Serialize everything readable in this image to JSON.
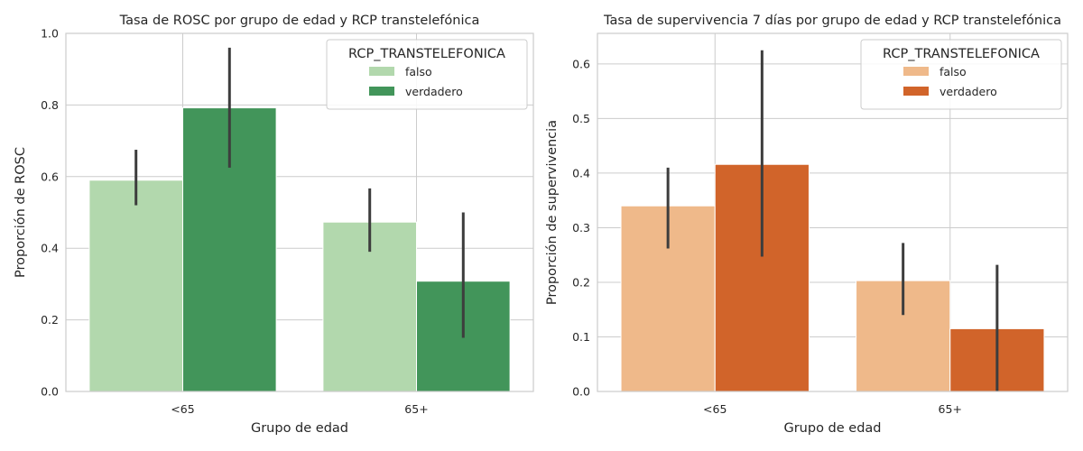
{
  "chart_data": [
    {
      "type": "bar",
      "title": "Tasa de ROSC por grupo de edad y RCP transtelefónica",
      "xlabel": "Grupo de edad",
      "ylabel": "Proporción de ROSC",
      "categories": [
        "<65",
        "65+"
      ],
      "ylim": [
        0,
        1.0
      ],
      "yticks": [
        0.0,
        0.2,
        0.4,
        0.6,
        0.8,
        1.0
      ],
      "ytick_labels": [
        "0.0",
        "0.2",
        "0.4",
        "0.6",
        "0.8",
        "1.0"
      ],
      "grid": true,
      "legend": {
        "title": "RCP_TRANSTELEFONICA",
        "placement": "top-right"
      },
      "series": [
        {
          "name": "falso",
          "color": "#b2d8ad",
          "values": [
            0.59,
            0.473
          ],
          "ci_low": [
            0.52,
            0.39
          ],
          "ci_high": [
            0.675,
            0.567
          ]
        },
        {
          "name": "verdadero",
          "color": "#42955a",
          "values": [
            0.792,
            0.308
          ],
          "ci_low": [
            0.625,
            0.15
          ],
          "ci_high": [
            0.96,
            0.5
          ]
        }
      ]
    },
    {
      "type": "bar",
      "title": "Tasa de supervivencia 7 días por grupo de edad y RCP transtelefónica",
      "xlabel": "Grupo de edad",
      "ylabel": "Proporción de supervivencia",
      "categories": [
        "<65",
        "65+"
      ],
      "ylim": [
        0,
        0.656
      ],
      "yticks": [
        0.0,
        0.1,
        0.2,
        0.3,
        0.4,
        0.5,
        0.6
      ],
      "ytick_labels": [
        "0.0",
        "0.1",
        "0.2",
        "0.3",
        "0.4",
        "0.5",
        "0.6"
      ],
      "grid": true,
      "legend": {
        "title": "RCP_TRANSTELEFONICA",
        "placement": "top-right"
      },
      "series": [
        {
          "name": "falso",
          "color": "#efb98a",
          "values": [
            0.34,
            0.203
          ],
          "ci_low": [
            0.262,
            0.14
          ],
          "ci_high": [
            0.41,
            0.272
          ]
        },
        {
          "name": "verdadero",
          "color": "#d1642a",
          "values": [
            0.416,
            0.115
          ],
          "ci_low": [
            0.247,
            0.0
          ],
          "ci_high": [
            0.625,
            0.232
          ]
        }
      ]
    }
  ]
}
